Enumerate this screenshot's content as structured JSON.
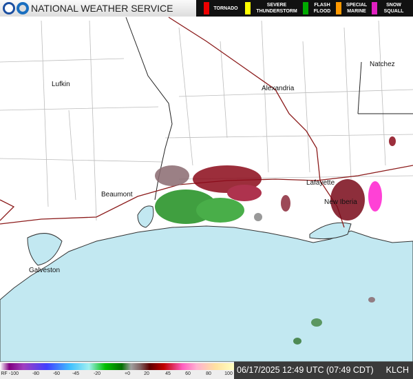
{
  "header": {
    "title": "NATIONAL WEATHER SERVICE",
    "warnings": [
      "TORNADO",
      "SEVERE THUNDERSTORM",
      "FLASH FLOOD",
      "SPECIAL MARINE",
      "SNOW SQUALL"
    ]
  },
  "map": {
    "cities": [
      "Lufkin",
      "Alexandria",
      "Natchez",
      "Beaumont",
      "Lafayette",
      "New Iberia",
      "Galveston"
    ]
  },
  "color_scale": {
    "labels": [
      "RF",
      "-100",
      "-80",
      "-60",
      "-45",
      "-20",
      "+0",
      "20",
      "45",
      "60",
      "80",
      "100"
    ]
  },
  "footer": {
    "timestamp": "06/17/2025 12:49 UTC (07:49 CDT)",
    "station": "KLCH"
  }
}
